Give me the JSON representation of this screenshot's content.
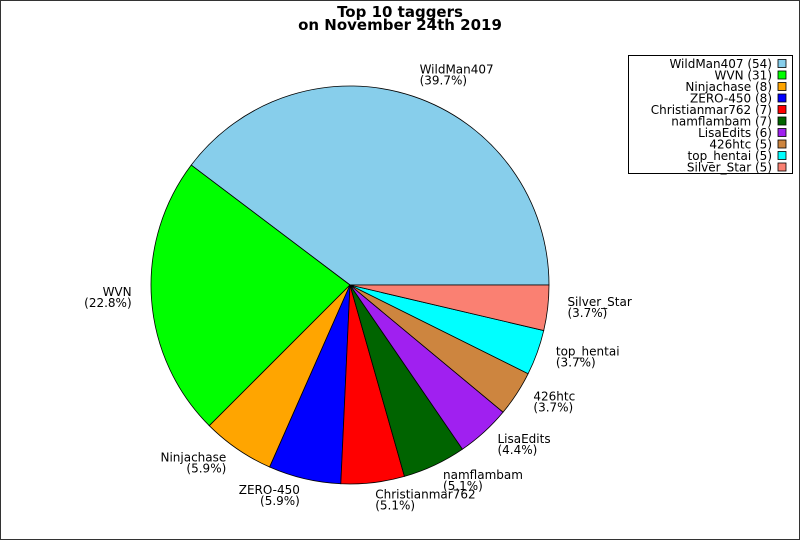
{
  "chart_data": {
    "type": "pie",
    "title": "Top 10 taggers",
    "subtitle": "on November 24th 2019",
    "categories": [
      "WildMan407",
      "WVN",
      "Ninjachase",
      "ZERO-450",
      "Christianmar762",
      "namflambam",
      "LisaEdits",
      "426htc",
      "top_hentai",
      "Silver_Star"
    ],
    "values": [
      54,
      31,
      8,
      8,
      7,
      7,
      6,
      5,
      5,
      5
    ],
    "value_labels": [
      "(39.7%)",
      "(22.8%)",
      "(5.9%)",
      "(5.9%)",
      "(5.1%)",
      "(5.1%)",
      "(4.4%)",
      "(3.7%)",
      "(3.7%)",
      "(3.7%)"
    ],
    "legend_labels": [
      "WildMan407 (54)",
      "WVN (31)",
      "Ninjachase (8)",
      "ZERO-450 (8)",
      "Christianmar762 (7)",
      "namflambam (7)",
      "LisaEdits (6)",
      "426htc (5)",
      "top_hentai (5)",
      "Silver_Star (5)"
    ],
    "colors": [
      "#87ceeb",
      "#00ff00",
      "#ffa500",
      "#0000ff",
      "#ff0000",
      "#006400",
      "#a020f0",
      "#cd853f",
      "#00ffff",
      "#fa8072"
    ],
    "legend": "top-right"
  }
}
